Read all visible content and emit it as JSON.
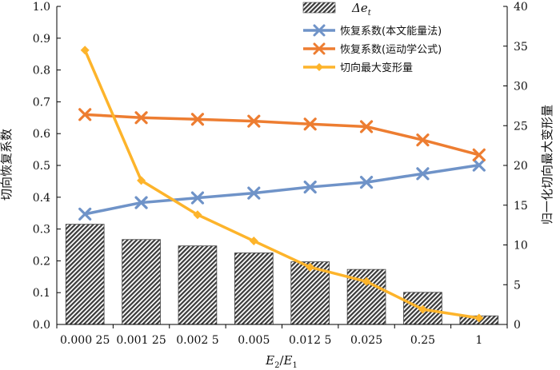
{
  "chart_data": {
    "type": "bar",
    "categories": [
      "0.000 25",
      "0.001 25",
      "0.002 5",
      "0.005",
      "0.012 5",
      "0.025",
      "0.25",
      "1"
    ],
    "xlabel_parts": {
      "main1": "E",
      "sub1": "2",
      "slash": "/",
      "main2": "E",
      "sub2": "1"
    },
    "ylabel_left": "切向恢复系数",
    "ylabel_right": "归一化切向最大变形量",
    "ylim_left": [
      0,
      1.0
    ],
    "ylim_right": [
      0,
      40
    ],
    "yticks_left": [
      "0.0",
      "0.1",
      "0.2",
      "0.3",
      "0.4",
      "0.5",
      "0.6",
      "0.7",
      "0.8",
      "0.9",
      "1.0"
    ],
    "yticks_right": [
      "0",
      "5",
      "10",
      "15",
      "20",
      "25",
      "30",
      "35",
      "40"
    ],
    "grid": false,
    "legend_position": "top-right",
    "bar_series": {
      "name_main": "Δe",
      "name_sub": "t",
      "color": "#444444",
      "axis": "left",
      "values": [
        0.315,
        0.267,
        0.247,
        0.225,
        0.197,
        0.173,
        0.101,
        0.027
      ]
    },
    "line_series": [
      {
        "name": "恢复系数(本文能量法)",
        "color": "#6f93c8",
        "marker": "x",
        "axis": "left",
        "values": [
          0.347,
          0.383,
          0.398,
          0.413,
          0.432,
          0.447,
          0.474,
          0.501
        ]
      },
      {
        "name": "恢复系数(运动学公式)",
        "color": "#ed7d31",
        "marker": "x",
        "axis": "left",
        "values": [
          0.66,
          0.65,
          0.645,
          0.639,
          0.63,
          0.622,
          0.58,
          0.533
        ]
      },
      {
        "name": "切向最大变形量",
        "color": "#fdb42b",
        "marker": "diamond",
        "axis": "right",
        "values": [
          34.5,
          18.1,
          13.8,
          10.5,
          7.2,
          5.4,
          1.9,
          0.8
        ]
      }
    ]
  }
}
